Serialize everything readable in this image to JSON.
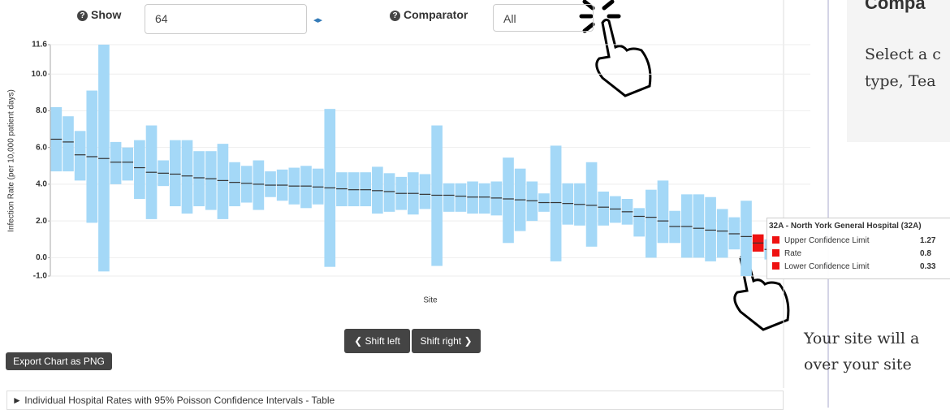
{
  "controls": {
    "show_label": "Show",
    "show_value": "64",
    "comparator_label": "Comparator",
    "comparator_value": "All"
  },
  "chart_data": {
    "type": "bar",
    "x_label": "Site",
    "y_label": "Infection Rate (per 10,000 patient days)",
    "categories": [
      null,
      null,
      null,
      null,
      null,
      null,
      null,
      null,
      null,
      null,
      null,
      null,
      null,
      null,
      null,
      null,
      null,
      null,
      null,
      null,
      null,
      null,
      null,
      null,
      null,
      null,
      null,
      null,
      null,
      null,
      null,
      null,
      null,
      null,
      null,
      null,
      null,
      null,
      null,
      null,
      null,
      null,
      null,
      null,
      null,
      null,
      null,
      null,
      null,
      null,
      null,
      null,
      null,
      null,
      null,
      null,
      null,
      null,
      null,
      null,
      null
    ],
    "series": [
      {
        "name": "Upper Confidence Limit",
        "color": "#a4d8f7",
        "values": [
          8.2,
          7.7,
          6.9,
          9.1,
          11.6,
          6.3,
          6.0,
          6.4,
          7.2,
          5.3,
          6.4,
          6.4,
          5.8,
          5.8,
          6.2,
          5.2,
          5.0,
          5.3,
          4.7,
          4.8,
          4.9,
          5.0,
          4.85,
          8.1,
          4.65,
          4.65,
          4.65,
          4.95,
          4.6,
          4.4,
          4.65,
          4.55,
          7.2,
          4.05,
          4.05,
          4.15,
          4.05,
          4.15,
          5.45,
          4.85,
          4.15,
          3.5,
          6.1,
          4.05,
          4.05,
          5.2,
          3.6,
          3.35,
          3.2,
          2.7,
          3.7,
          4.2,
          2.55,
          3.45,
          3.45,
          3.3,
          2.65,
          2.2,
          3.1,
          1.27,
          1.0
        ]
      },
      {
        "name": "Rate",
        "color": "#333333",
        "values": [
          6.45,
          6.3,
          5.6,
          5.5,
          5.4,
          5.2,
          5.2,
          4.9,
          4.65,
          4.6,
          4.55,
          4.45,
          4.35,
          4.3,
          4.2,
          4.1,
          4.05,
          4.0,
          3.95,
          3.95,
          3.9,
          3.9,
          3.85,
          3.8,
          3.75,
          3.7,
          3.7,
          3.65,
          3.6,
          3.5,
          3.5,
          3.45,
          3.4,
          3.4,
          3.35,
          3.3,
          3.3,
          3.25,
          3.2,
          3.15,
          3.1,
          3.0,
          3.0,
          2.95,
          2.9,
          2.85,
          2.75,
          2.65,
          2.5,
          2.25,
          2.2,
          2.0,
          1.7,
          1.7,
          1.6,
          1.5,
          1.45,
          1.3,
          1.15,
          0.8,
          0.45
        ]
      },
      {
        "name": "Lower Confidence Limit",
        "color": "#a4d8f7",
        "values": [
          4.7,
          4.7,
          4.2,
          1.9,
          -0.75,
          4.0,
          4.2,
          3.2,
          2.1,
          3.9,
          2.8,
          2.4,
          2.8,
          2.6,
          2.1,
          2.8,
          3.0,
          2.6,
          3.3,
          3.1,
          2.9,
          2.7,
          2.9,
          -0.5,
          2.8,
          2.8,
          2.8,
          2.4,
          2.5,
          2.6,
          2.35,
          2.65,
          -0.45,
          2.5,
          2.5,
          2.4,
          2.4,
          2.3,
          0.8,
          1.45,
          2.0,
          2.5,
          -0.2,
          1.8,
          1.75,
          0.6,
          1.75,
          1.9,
          1.8,
          1.15,
          0.0,
          0.8,
          0.8,
          0.0,
          0.0,
          -0.2,
          0.0,
          0.45,
          -1.0,
          0.33,
          -0.1
        ]
      }
    ],
    "highlight": {
      "index": 59,
      "color": "#ee1111"
    },
    "ylim": [
      -1.0,
      11.6
    ],
    "yticks": [
      11.6,
      {
        "value": 10,
        "label": "10.0"
      },
      {
        "value": 8,
        "label": "8.0"
      },
      {
        "value": 6,
        "label": "6.0"
      },
      {
        "value": 4,
        "label": "4.0"
      },
      {
        "value": 2,
        "label": "2.0"
      },
      {
        "value": 0,
        "label": "0.0"
      },
      {
        "value": -1,
        "label": "-1.0"
      }
    ],
    "grid": true
  },
  "tooltip": {
    "title": "32A - North York General Hospital (32A)"
  },
  "buttons": {
    "shift_left": "Shift left",
    "shift_right": "Shift right",
    "export": "Export Chart as PNG"
  },
  "table_toggle": "Individual Hospital Rates with 95% Poisson Confidence Intervals - Table",
  "panel": {
    "heading": "Compa",
    "line1": "Select a c",
    "line2": "type, Tea",
    "line3": "Your site will a",
    "line4": "over your site"
  }
}
